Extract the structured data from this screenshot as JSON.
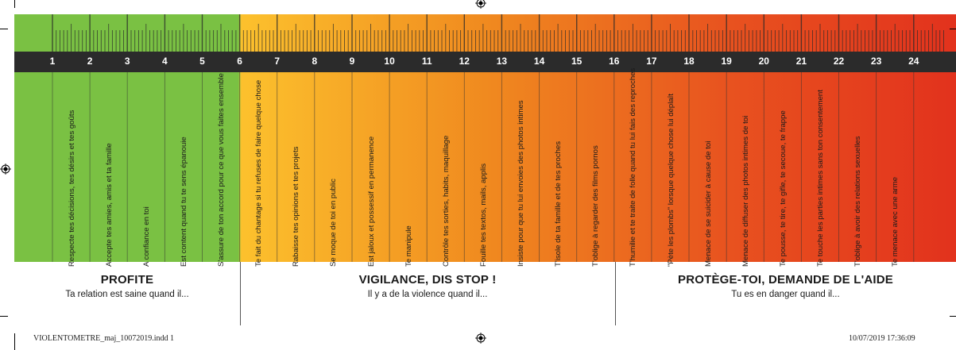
{
  "scale_numbers": [
    "1",
    "2",
    "3",
    "4",
    "5",
    "6",
    "7",
    "8",
    "9",
    "10",
    "11",
    "12",
    "13",
    "14",
    "15",
    "16",
    "17",
    "18",
    "19",
    "20",
    "21",
    "22",
    "23",
    "24"
  ],
  "statements": [
    "Respecte tes décisions, tes désirs et tes goûts",
    "Accepte tes amies, amis et ta famille",
    "A confiance en toi",
    "Est content quand tu te sens épanouie",
    "S'assure de ton accord pour ce que vous faites ensemble",
    "Te fait du chantage si tu refuses de faire quelque chose",
    "Rabaisse tes opinions et tes projets",
    "Se moque de toi en public",
    "Est jaloux et possessif en permanence",
    "Te manipule",
    "Contrôle tes sorties, habits, maquillage",
    "Fouille tes textos, mails, applis",
    "Insiste pour que tu lui envoies des photos intimes",
    "T'isole de ta famille et de tes proches",
    "T'oblige à regarder des films pornos",
    "T'humilie et te traite de folle quand tu lui fais des reproches",
    "\"Pète les plombs\" lorsque quelque chose lui déplaît",
    "Menace de se suicider à cause de toi",
    "Menace de diffuser des photos intimes de toi",
    "Te pousse, te tire, te gifle, te secoue, te frappe",
    "Te touche les parties intimes sans ton consentement",
    "T'oblige à avoir des relations sexuelles",
    "Te menace avec une arme"
  ],
  "sections": [
    {
      "title": "PROFITE",
      "subtitle": "Ta relation est saine quand il..."
    },
    {
      "title": "VIGILANCE, DIS STOP !",
      "subtitle": "Il y a de la violence quand il..."
    },
    {
      "title": "PROTÈGE-TOI, DEMANDE DE L'AIDE",
      "subtitle": "Tu es en danger quand il..."
    }
  ],
  "footer": {
    "file": "VIOLENTOMETRE_maj_10072019.indd   1",
    "timestamp": "10/07/2019   17:36:09"
  },
  "colors": {
    "green": "#7ac143",
    "yellow": "#fcc12d",
    "orange": "#f08a1f",
    "red": "#e2321d",
    "bar": "#2b2b2b"
  }
}
